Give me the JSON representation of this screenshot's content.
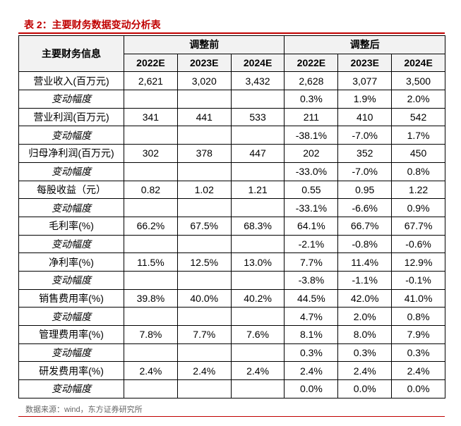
{
  "title": "表 2：主要财务数据变动分析表",
  "table": {
    "header": {
      "first": "主要财务信息",
      "before": "调整前",
      "after": "调整后",
      "before_years": [
        "2022E",
        "2023E",
        "2024E"
      ],
      "after_years": [
        "2022E",
        "2023E",
        "2024E"
      ]
    },
    "rows": [
      {
        "label": "营业收入(百万元)",
        "before": [
          "2,621",
          "3,020",
          "3,432"
        ],
        "after": [
          "2,628",
          "3,077",
          "3,500"
        ]
      },
      {
        "label": "变动幅度",
        "after": [
          "0.3%",
          "1.9%",
          "2.0%"
        ]
      },
      {
        "label": "营业利润(百万元)",
        "before": [
          "341",
          "441",
          "533"
        ],
        "after": [
          "211",
          "410",
          "542"
        ]
      },
      {
        "label": "变动幅度",
        "after": [
          "-38.1%",
          "-7.0%",
          "1.7%"
        ]
      },
      {
        "label": "归母净利润(百万元)",
        "before": [
          "302",
          "378",
          "447"
        ],
        "after": [
          "202",
          "352",
          "450"
        ]
      },
      {
        "label": "变动幅度",
        "after": [
          "-33.0%",
          "-7.0%",
          "0.8%"
        ]
      },
      {
        "label": "每股收益（元）",
        "before": [
          "0.82",
          "1.02",
          "1.21"
        ],
        "after": [
          "0.55",
          "0.95",
          "1.22"
        ]
      },
      {
        "label": "变动幅度",
        "after": [
          "-33.1%",
          "-6.6%",
          "0.9%"
        ]
      },
      {
        "label": "毛利率(%)",
        "before": [
          "66.2%",
          "67.5%",
          "68.3%"
        ],
        "after": [
          "64.1%",
          "66.7%",
          "67.7%"
        ]
      },
      {
        "label": "变动幅度",
        "after": [
          "-2.1%",
          "-0.8%",
          "-0.6%"
        ]
      },
      {
        "label": "净利率(%)",
        "before": [
          "11.5%",
          "12.5%",
          "13.0%"
        ],
        "after": [
          "7.7%",
          "11.4%",
          "12.9%"
        ]
      },
      {
        "label": "变动幅度",
        "after": [
          "-3.8%",
          "-1.1%",
          "-0.1%"
        ]
      },
      {
        "label": "销售费用率(%)",
        "before": [
          "39.8%",
          "40.0%",
          "40.2%"
        ],
        "after": [
          "44.5%",
          "42.0%",
          "41.0%"
        ]
      },
      {
        "label": "变动幅度",
        "after": [
          "4.7%",
          "2.0%",
          "0.8%"
        ]
      },
      {
        "label": "管理费用率(%)",
        "before": [
          "7.8%",
          "7.7%",
          "7.6%"
        ],
        "after": [
          "8.1%",
          "8.0%",
          "7.9%"
        ]
      },
      {
        "label": "变动幅度",
        "after": [
          "0.3%",
          "0.3%",
          "0.3%"
        ]
      },
      {
        "label": "研发费用率(%)",
        "before": [
          "2.4%",
          "2.4%",
          "2.4%"
        ],
        "after": [
          "2.4%",
          "2.4%",
          "2.4%"
        ]
      },
      {
        "label": "变动幅度",
        "after": [
          "0.0%",
          "0.0%",
          "0.0%"
        ]
      }
    ]
  },
  "source": "数据来源：wind，东方证券研究所"
}
